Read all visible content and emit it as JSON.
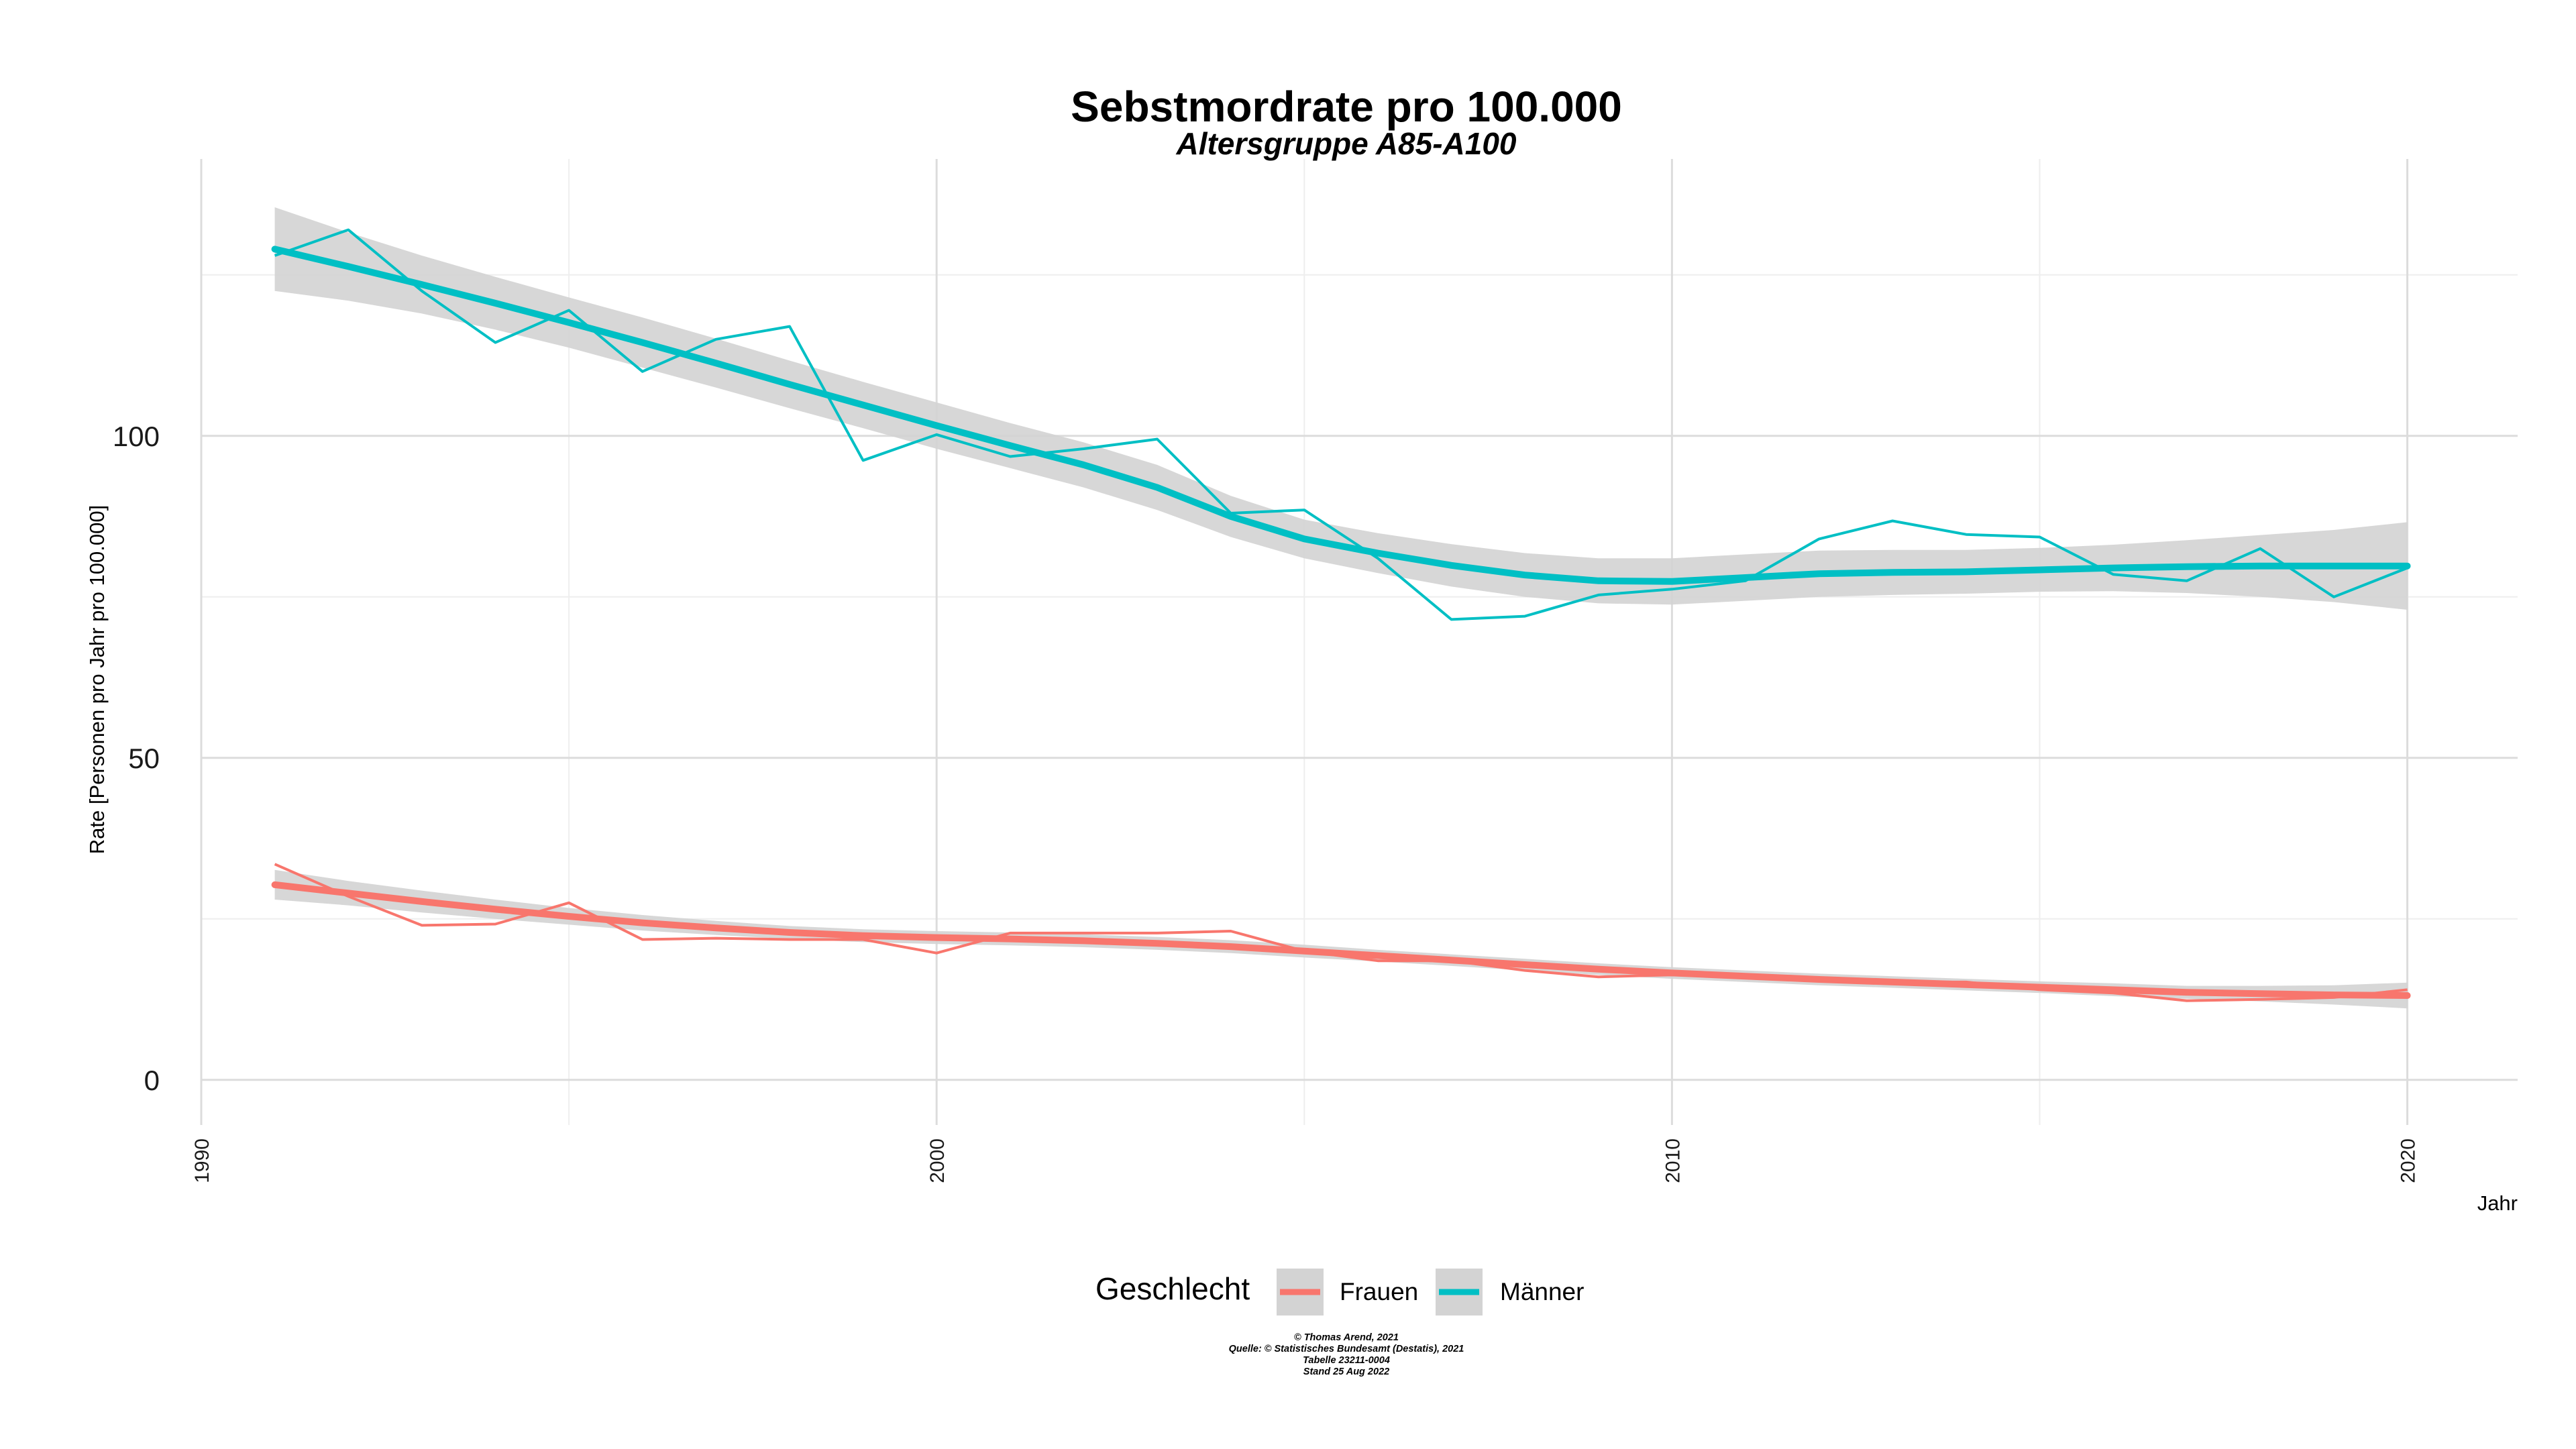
{
  "colors": {
    "frauen": "#F8766D",
    "maenner": "#00BFC4",
    "band": "#d3d3d3",
    "grid_major": "#dcdcdc",
    "grid_minor": "#eeeeee"
  },
  "chart_data": {
    "type": "line",
    "title": "Sebstmordrate pro 100.000",
    "subtitle": "Altersgruppe A85-A100",
    "xlabel": "Jahr",
    "ylabel": "Rate [Personen pro Jahr pro 100.000]",
    "xlim": [
      1990,
      2021.5
    ],
    "ylim": [
      -7,
      143
    ],
    "x_ticks": [
      1990,
      2000,
      2010,
      2020
    ],
    "y_ticks": [
      0,
      50,
      100
    ],
    "x_tick_labels": [
      "1990",
      "2000",
      "2010",
      "2020"
    ],
    "y_tick_labels": [
      "0",
      "50",
      "100"
    ],
    "legend": {
      "title": "Geschlecht",
      "position": "bottom",
      "items": [
        "Frauen",
        "Männer"
      ]
    },
    "series": [
      {
        "name": "Frauen",
        "color": "#F8766D",
        "x": [
          1991,
          1992,
          1993,
          1994,
          1995,
          1996,
          1997,
          1998,
          1999,
          2000,
          2001,
          2002,
          2003,
          2004,
          2005,
          2006,
          2007,
          2008,
          2009,
          2010,
          2011,
          2012,
          2013,
          2014,
          2015,
          2016,
          2017,
          2018,
          2019,
          2020
        ],
        "values": [
          33.5,
          28.5,
          24.0,
          24.2,
          27.5,
          21.8,
          22.0,
          21.8,
          21.8,
          19.7,
          22.8,
          22.8,
          22.8,
          23.1,
          20.0,
          18.5,
          18.5,
          17.0,
          16.0,
          16.3,
          16.0,
          15.5,
          15.2,
          15.2,
          14.0,
          13.5,
          12.3,
          12.5,
          12.8,
          14.0
        ],
        "smooth": [
          30.3,
          29.0,
          27.7,
          26.5,
          25.4,
          24.4,
          23.6,
          22.9,
          22.4,
          22.1,
          21.9,
          21.6,
          21.2,
          20.7,
          20.0,
          19.3,
          18.6,
          17.9,
          17.2,
          16.6,
          16.1,
          15.6,
          15.2,
          14.8,
          14.4,
          14.0,
          13.6,
          13.4,
          13.2,
          13.1
        ],
        "band_lo": [
          28.0,
          27.1,
          26.0,
          25.0,
          24.1,
          23.2,
          22.5,
          21.9,
          21.4,
          21.1,
          20.9,
          20.6,
          20.2,
          19.7,
          19.0,
          18.4,
          17.7,
          17.0,
          16.3,
          15.7,
          15.2,
          14.7,
          14.3,
          13.9,
          13.5,
          13.0,
          12.6,
          12.2,
          11.7,
          11.1
        ],
        "band_hi": [
          32.6,
          30.9,
          29.4,
          28.0,
          26.7,
          25.6,
          24.7,
          23.9,
          23.4,
          23.1,
          22.9,
          22.6,
          22.2,
          21.7,
          21.0,
          20.2,
          19.5,
          18.8,
          18.1,
          17.5,
          17.0,
          16.5,
          16.1,
          15.7,
          15.3,
          15.0,
          14.6,
          14.6,
          14.7,
          15.1
        ]
      },
      {
        "name": "Männer",
        "color": "#00BFC4",
        "x": [
          1991,
          1992,
          1993,
          1994,
          1995,
          1996,
          1997,
          1998,
          1999,
          2000,
          2001,
          2002,
          2003,
          2004,
          2005,
          2006,
          2007,
          2008,
          2009,
          2010,
          2011,
          2012,
          2013,
          2014,
          2015,
          2016,
          2017,
          2018,
          2019,
          2020
        ],
        "values": [
          128.0,
          132.0,
          122.5,
          114.5,
          119.5,
          110.0,
          115.0,
          117.0,
          96.2,
          100.2,
          96.8,
          98.0,
          99.5,
          88.0,
          88.5,
          81.0,
          71.5,
          72.0,
          75.3,
          76.2,
          77.5,
          84.0,
          86.8,
          84.7,
          84.3,
          78.5,
          77.5,
          82.5,
          75.0,
          79.5
        ]
      },
      {
        "name": "Männer (geglättet)",
        "color": "#00BFC4",
        "x": [
          1991,
          1992,
          1993,
          1994,
          1995,
          1996,
          1997,
          1998,
          1999,
          2000,
          2001,
          2002,
          2003,
          2004,
          2005,
          2006,
          2007,
          2008,
          2009,
          2010,
          2011,
          2012,
          2013,
          2014,
          2015,
          2016,
          2017,
          2018,
          2019,
          2020
        ],
        "values": [
          129.0,
          126.3,
          123.5,
          120.6,
          117.6,
          114.5,
          111.3,
          108.0,
          104.8,
          101.6,
          98.5,
          95.5,
          92.0,
          87.5,
          84.0,
          81.8,
          79.9,
          78.4,
          77.5,
          77.4,
          78.0,
          78.6,
          78.8,
          78.9,
          79.2,
          79.5,
          79.7,
          79.8,
          79.8,
          79.8
        ],
        "band_lo": [
          122.5,
          121.0,
          119.0,
          116.5,
          113.7,
          110.6,
          107.5,
          104.3,
          101.2,
          98.0,
          95.0,
          92.0,
          88.5,
          84.3,
          81.0,
          78.7,
          76.6,
          75.0,
          74.0,
          73.8,
          74.4,
          75.0,
          75.3,
          75.5,
          75.8,
          75.9,
          75.6,
          75.0,
          74.2,
          73.0
        ],
        "band_hi": [
          135.5,
          131.6,
          128.0,
          124.7,
          121.5,
          118.4,
          115.1,
          111.7,
          108.4,
          105.2,
          102.0,
          99.0,
          95.5,
          90.7,
          87.0,
          84.9,
          83.2,
          81.8,
          81.0,
          81.0,
          81.6,
          82.2,
          82.3,
          82.3,
          82.6,
          83.1,
          83.8,
          84.6,
          85.4,
          86.6
        ]
      }
    ]
  },
  "caption": {
    "lines": [
      "© Thomas Arend, 2021",
      "Quelle: © Statistisches Bundesamt (Destatis), 2021",
      "Tabelle 23211-0004",
      "Stand 25 Aug 2022"
    ]
  }
}
